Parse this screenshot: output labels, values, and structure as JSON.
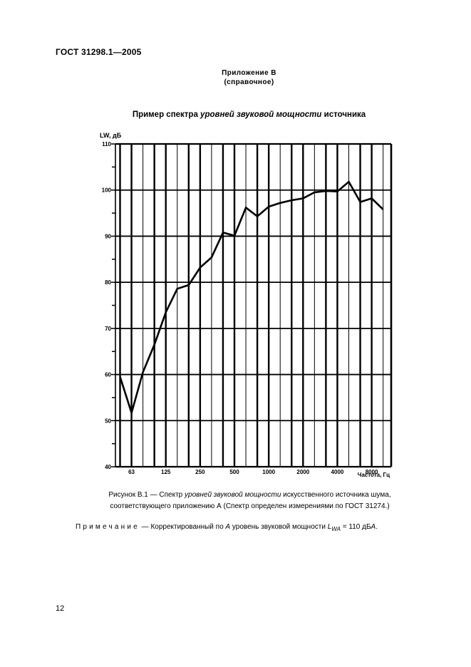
{
  "header": {
    "doc_code": "ГОСТ  31298.1—2005",
    "appendix_title": "Приложение В",
    "appendix_type": "(справочное)"
  },
  "chart_title": {
    "prefix": "Пример спектра ",
    "italic": "уровней звуковой мощности",
    "suffix": " источника"
  },
  "caption": {
    "line1_prefix": "Рисунок В.1 — Спектр ",
    "line1_italic": "уровней звуковой мощности",
    "line1_suffix": " искусственного источника шума,",
    "line2": "соответствующего приложению А (Спектр определен измерениями по ГОСТ 31274.)"
  },
  "note": {
    "label": "Примечание",
    "text_prefix": " — Корректированный по ",
    "italic_a": "А",
    "text_mid": " уровень звуковой мощности ",
    "symbol": "L",
    "subscript": "WA",
    "text_suffix": " = 110 дБ",
    "unit_italic": "А",
    "end": "."
  },
  "page_number": "12",
  "chart_data": {
    "type": "line",
    "title": "Пример спектра уровней звуковой мощности источника",
    "xlabel": "Частота, Гц",
    "ylabel": "L_W, дБ",
    "ylim": [
      40,
      110
    ],
    "yticks": [
      40,
      50,
      60,
      70,
      80,
      90,
      100,
      110
    ],
    "grid": true,
    "legend": null,
    "x_scale": "1/3-octave bands",
    "x_tick_labels": [
      "63",
      "125",
      "250",
      "500",
      "1000",
      "2000",
      "4000",
      "8000"
    ],
    "x": [
      50,
      63,
      80,
      100,
      125,
      160,
      200,
      250,
      315,
      400,
      500,
      630,
      800,
      1000,
      1250,
      1600,
      2000,
      2500,
      3150,
      4000,
      5000,
      6300,
      8000,
      10000
    ],
    "values": [
      59.5,
      51.7,
      60.5,
      66.5,
      73.5,
      78.6,
      79.4,
      83.2,
      85.4,
      90.8,
      90.1,
      96.2,
      94.3,
      96.4,
      97.2,
      97.8,
      98.2,
      99.5,
      99.8,
      99.7,
      101.8,
      97.4,
      98.2,
      95.8
    ]
  }
}
